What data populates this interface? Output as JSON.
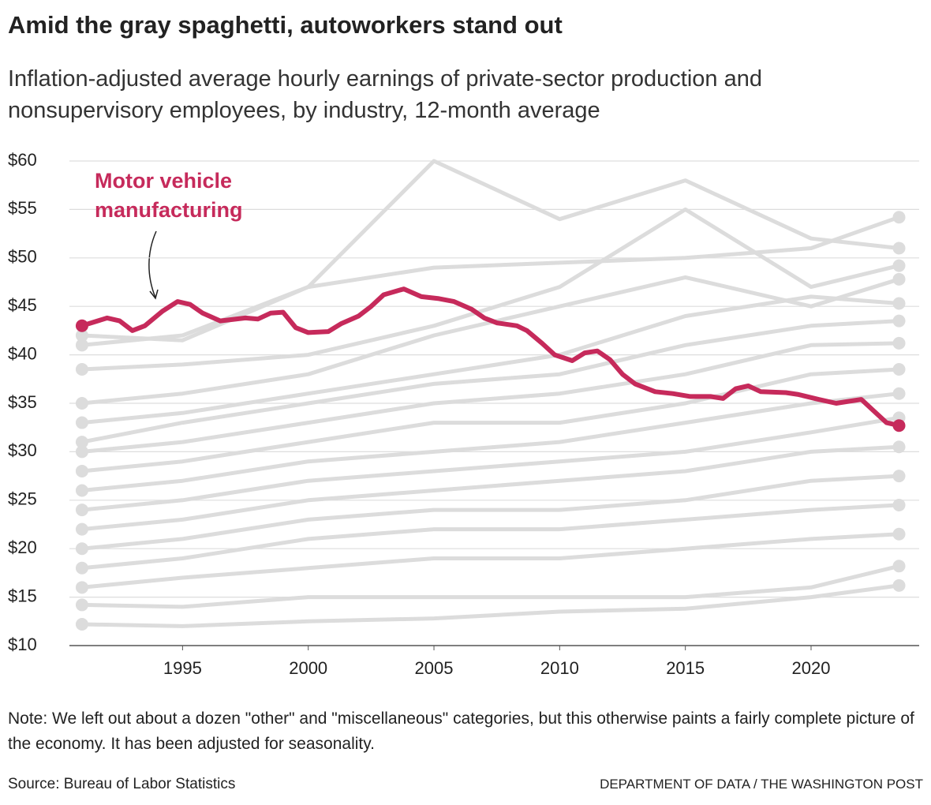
{
  "chart_data": {
    "type": "line",
    "title": "Amid the gray spaghetti, autoworkers stand out",
    "subtitle": "Inflation-adjusted average hourly earnings of private-sector production and nonsupervisory employees, by industry, 12-month average",
    "note": "Note: We left out about a dozen \"other\" and \"miscellaneous\" categories, but this otherwise paints a fairly complete picture of the economy. It has been adjusted for seasonality.",
    "source": "Source: Bureau of Labor Statistics",
    "credit": "DEPARTMENT OF DATA / THE WASHINGTON POST",
    "xlim": [
      1990.5,
      2024.3
    ],
    "xticks": [
      1995,
      2000,
      2005,
      2010,
      2015,
      2020
    ],
    "ylim": [
      10,
      60
    ],
    "yticks": [
      {
        "value": 10,
        "label": "$10"
      },
      {
        "value": 15,
        "label": "$15"
      },
      {
        "value": 20,
        "label": "$20"
      },
      {
        "value": 25,
        "label": "$25"
      },
      {
        "value": 30,
        "label": "$30"
      },
      {
        "value": 35,
        "label": "$35"
      },
      {
        "value": 40,
        "label": "$40"
      },
      {
        "value": 45,
        "label": "$45"
      },
      {
        "value": 50,
        "label": "$50"
      },
      {
        "value": 55,
        "label": "$55"
      },
      {
        "value": 60,
        "label": "$60"
      }
    ],
    "grid": true,
    "x": [
      1991,
      1995,
      2000,
      2005,
      2010,
      2015,
      2020,
      2023.5
    ],
    "series": [
      {
        "color": "#dcdcdc",
        "values": [
          42,
          41.5,
          47,
          49,
          49.5,
          50,
          51,
          54.2
        ]
      },
      {
        "color": "#dcdcdc",
        "values": [
          41,
          42,
          47,
          60,
          54,
          58,
          52,
          51
        ]
      },
      {
        "color": "#dcdcdc",
        "values": [
          38.5,
          39,
          40,
          43,
          47,
          55,
          47,
          49.2
        ]
      },
      {
        "color": "#dcdcdc",
        "values": [
          35,
          36,
          38,
          42,
          45,
          48,
          45,
          47.8
        ]
      },
      {
        "color": "#dcdcdc",
        "values": [
          33,
          34,
          36,
          38,
          40,
          44,
          46,
          45.3
        ]
      },
      {
        "color": "#dcdcdc",
        "values": [
          31,
          33,
          35,
          37,
          38,
          41,
          43,
          43.5
        ]
      },
      {
        "color": "#dcdcdc",
        "values": [
          30,
          31,
          33,
          35,
          36,
          38,
          41,
          41.2
        ]
      },
      {
        "color": "#dcdcdc",
        "values": [
          28,
          29,
          31,
          33,
          33,
          35,
          38,
          38.5
        ]
      },
      {
        "color": "#dcdcdc",
        "values": [
          26,
          27,
          29,
          30,
          31,
          33,
          35,
          36
        ]
      },
      {
        "color": "#dcdcdc",
        "values": [
          24,
          25,
          27,
          28,
          29,
          30,
          32,
          33.5
        ]
      },
      {
        "color": "#dcdcdc",
        "values": [
          22,
          23,
          25,
          26,
          27,
          28,
          30,
          30.5
        ]
      },
      {
        "color": "#dcdcdc",
        "values": [
          20,
          21,
          23,
          24,
          24,
          25,
          27,
          27.5
        ]
      },
      {
        "color": "#dcdcdc",
        "values": [
          18,
          19,
          21,
          22,
          22,
          23,
          24,
          24.5
        ]
      },
      {
        "color": "#dcdcdc",
        "values": [
          16,
          17,
          18,
          19,
          19,
          20,
          21,
          21.5
        ]
      },
      {
        "color": "#dcdcdc",
        "values": [
          14.2,
          14,
          15,
          15,
          15,
          15,
          16,
          18.2
        ]
      },
      {
        "color": "#dcdcdc",
        "values": [
          12.2,
          12,
          12.5,
          12.8,
          13.5,
          13.8,
          15,
          16.2
        ]
      },
      {
        "name": "Motor vehicle manufacturing",
        "color": "#c62a5b",
        "x": [
          1991,
          1992,
          1992.5,
          1993,
          1993.5,
          1994.2,
          1994.8,
          1995.3,
          1995.8,
          1996.5,
          1997.5,
          1998,
          1998.5,
          1999,
          1999.5,
          2000,
          2000.8,
          2001.3,
          2002,
          2002.5,
          2003,
          2003.8,
          2004.5,
          2005.2,
          2005.8,
          2006.5,
          2007,
          2007.5,
          2008.3,
          2008.7,
          2009.3,
          2009.8,
          2010.5,
          2011,
          2011.5,
          2012,
          2012.5,
          2013,
          2013.8,
          2014.5,
          2015.2,
          2016,
          2016.5,
          2017,
          2017.5,
          2018,
          2019,
          2019.5,
          2020.3,
          2021,
          2021.5,
          2022,
          2022.5,
          2023,
          2023.5
        ],
        "values": [
          43,
          43.8,
          43.5,
          42.5,
          43,
          44.5,
          45.5,
          45.2,
          44.3,
          43.5,
          43.8,
          43.7,
          44.3,
          44.4,
          42.8,
          42.3,
          42.4,
          43.2,
          44,
          45,
          46.2,
          46.8,
          46,
          45.8,
          45.5,
          44.7,
          43.8,
          43.3,
          43,
          42.5,
          41.2,
          40,
          39.4,
          40.2,
          40.4,
          39.5,
          38,
          37,
          36.2,
          36,
          35.7,
          35.7,
          35.5,
          36.5,
          36.8,
          36.2,
          36.1,
          35.9,
          35.4,
          35,
          35.2,
          35.4,
          34.2,
          33,
          32.7
        ]
      }
    ]
  }
}
